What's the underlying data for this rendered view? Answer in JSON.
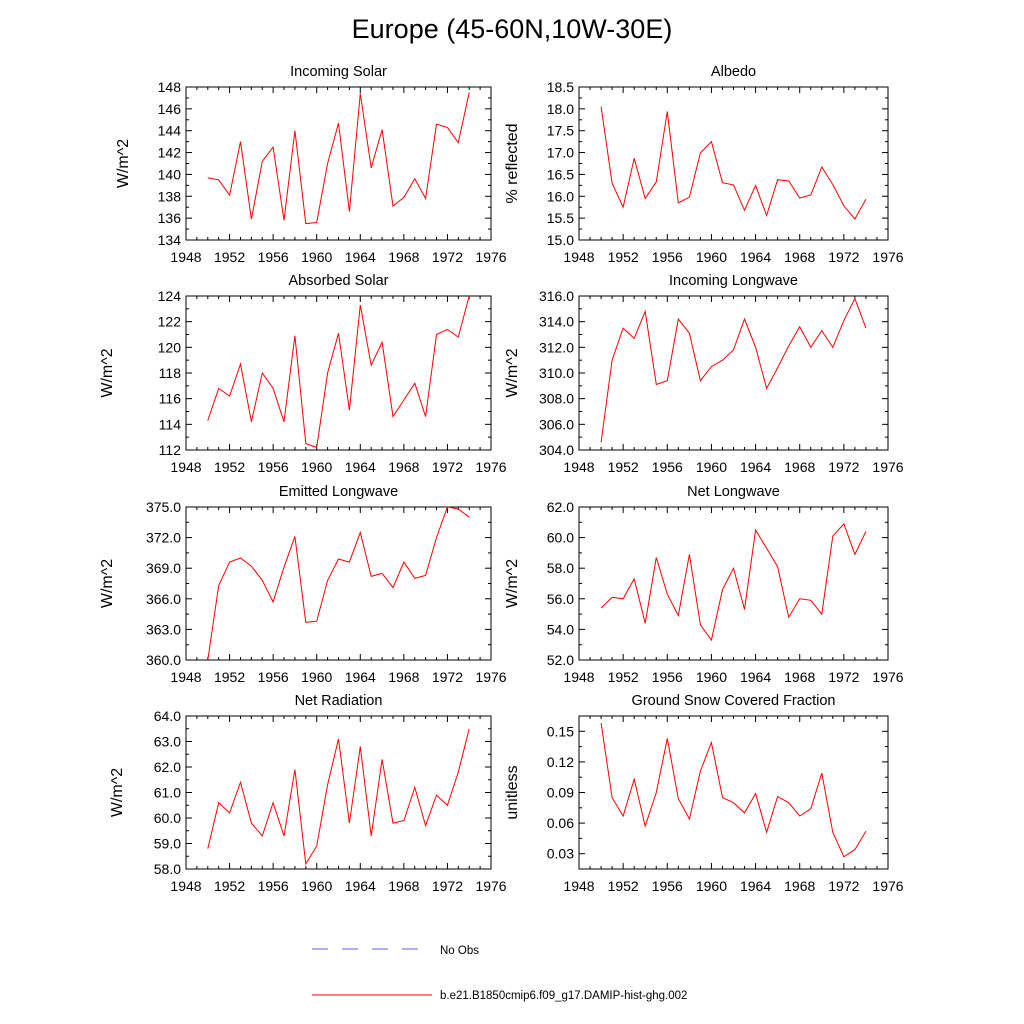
{
  "page": {
    "title": "Europe (45-60N,10W-30E)"
  },
  "legend": {
    "entries": [
      {
        "label": "No Obs",
        "color": "#5566cc",
        "style": "dashed"
      },
      {
        "label": "b.e21.B1850cmip6.f09_g17.DAMIP-hist-ghg.002",
        "color": "#ff0000",
        "style": "solid"
      }
    ]
  },
  "chart_data": [
    {
      "type": "line",
      "title": "Incoming Solar",
      "ylabel": "W/m^2",
      "xlim": [
        1948,
        1976
      ],
      "ylim": [
        134,
        148
      ],
      "xticks": [
        1948,
        1952,
        1956,
        1960,
        1964,
        1968,
        1972,
        1976
      ],
      "yticks": [
        134,
        136,
        138,
        140,
        142,
        144,
        146,
        148
      ],
      "ytick_labels": [
        "134",
        "136",
        "138",
        "140",
        "142",
        "144",
        "146",
        "148"
      ],
      "x": [
        1950,
        1951,
        1952,
        1953,
        1954,
        1955,
        1956,
        1957,
        1958,
        1959,
        1960,
        1961,
        1962,
        1963,
        1964,
        1965,
        1966,
        1967,
        1968,
        1969,
        1970,
        1971,
        1972,
        1973,
        1974
      ],
      "values": [
        139.7,
        139.5,
        138.1,
        143.0,
        135.9,
        141.2,
        142.5,
        135.8,
        144.0,
        135.5,
        135.6,
        141.0,
        144.7,
        136.6,
        147.4,
        140.6,
        144.1,
        137.1,
        137.9,
        139.6,
        137.8,
        144.6,
        144.3,
        142.9,
        147.5
      ],
      "color": "#ff0000"
    },
    {
      "type": "line",
      "title": "Albedo",
      "ylabel": "% reflected",
      "xlim": [
        1948,
        1976
      ],
      "ylim": [
        15.0,
        18.5
      ],
      "xticks": [
        1948,
        1952,
        1956,
        1960,
        1964,
        1968,
        1972,
        1976
      ],
      "yticks": [
        15.0,
        15.5,
        16.0,
        16.5,
        17.0,
        17.5,
        18.0,
        18.5
      ],
      "ytick_labels": [
        "15.0",
        "15.5",
        "16.0",
        "16.5",
        "17.0",
        "17.5",
        "18.0",
        "18.5"
      ],
      "x": [
        1950,
        1951,
        1952,
        1953,
        1954,
        1955,
        1956,
        1957,
        1958,
        1959,
        1960,
        1961,
        1962,
        1963,
        1964,
        1965,
        1966,
        1967,
        1968,
        1969,
        1970,
        1971,
        1972,
        1973,
        1974
      ],
      "values": [
        18.05,
        16.3,
        15.75,
        16.87,
        15.95,
        16.33,
        17.94,
        15.85,
        15.98,
        16.99,
        17.25,
        16.31,
        16.26,
        15.68,
        16.25,
        15.56,
        16.38,
        16.35,
        15.96,
        16.03,
        16.67,
        16.27,
        15.78,
        15.48,
        15.93
      ],
      "color": "#ff0000"
    },
    {
      "type": "line",
      "title": "Absorbed Solar",
      "ylabel": "W/m^2",
      "xlim": [
        1948,
        1976
      ],
      "ylim": [
        112,
        124
      ],
      "xticks": [
        1948,
        1952,
        1956,
        1960,
        1964,
        1968,
        1972,
        1976
      ],
      "yticks": [
        112,
        114,
        116,
        118,
        120,
        122,
        124
      ],
      "ytick_labels": [
        "112",
        "114",
        "116",
        "118",
        "120",
        "122",
        "124"
      ],
      "x": [
        1950,
        1951,
        1952,
        1953,
        1954,
        1955,
        1956,
        1957,
        1958,
        1959,
        1960,
        1961,
        1962,
        1963,
        1964,
        1965,
        1966,
        1967,
        1968,
        1969,
        1970,
        1971,
        1972,
        1973,
        1974
      ],
      "values": [
        114.3,
        116.8,
        116.2,
        118.7,
        114.2,
        118.0,
        116.8,
        114.2,
        120.9,
        112.5,
        112.2,
        118.0,
        121.1,
        115.1,
        123.3,
        118.6,
        120.4,
        114.6,
        115.9,
        117.2,
        114.6,
        121.0,
        121.4,
        120.8,
        124.0
      ],
      "color": "#ff0000"
    },
    {
      "type": "line",
      "title": "Incoming Longwave",
      "ylabel": "W/m^2",
      "xlim": [
        1948,
        1976
      ],
      "ylim": [
        304.0,
        316.0
      ],
      "xticks": [
        1948,
        1952,
        1956,
        1960,
        1964,
        1968,
        1972,
        1976
      ],
      "yticks": [
        304.0,
        306.0,
        308.0,
        310.0,
        312.0,
        314.0,
        316.0
      ],
      "ytick_labels": [
        "304.0",
        "306.0",
        "308.0",
        "310.0",
        "312.0",
        "314.0",
        "316.0"
      ],
      "x": [
        1950,
        1951,
        1952,
        1953,
        1954,
        1955,
        1956,
        1957,
        1958,
        1959,
        1960,
        1961,
        1962,
        1963,
        1964,
        1965,
        1966,
        1967,
        1968,
        1969,
        1970,
        1971,
        1972,
        1973,
        1974
      ],
      "values": [
        304.6,
        311.0,
        313.5,
        312.7,
        314.8,
        309.1,
        309.4,
        314.2,
        313.1,
        309.4,
        310.5,
        311.0,
        311.8,
        314.2,
        312.0,
        308.8,
        310.4,
        312.1,
        313.6,
        312.0,
        313.3,
        312.0,
        314.1,
        315.8,
        313.5
      ],
      "color": "#ff0000"
    },
    {
      "type": "line",
      "title": "Emitted Longwave",
      "ylabel": "W/m^2",
      "xlim": [
        1948,
        1976
      ],
      "ylim": [
        360.0,
        375.0
      ],
      "xticks": [
        1948,
        1952,
        1956,
        1960,
        1964,
        1968,
        1972,
        1976
      ],
      "yticks": [
        360.0,
        363.0,
        366.0,
        369.0,
        372.0,
        375.0
      ],
      "ytick_labels": [
        "360.0",
        "363.0",
        "366.0",
        "369.0",
        "372.0",
        "375.0"
      ],
      "x": [
        1950,
        1951,
        1952,
        1953,
        1954,
        1955,
        1956,
        1957,
        1958,
        1959,
        1960,
        1961,
        1962,
        1963,
        1964,
        1965,
        1966,
        1967,
        1968,
        1969,
        1970,
        1971,
        1972,
        1973,
        1974
      ],
      "values": [
        360.0,
        367.3,
        369.6,
        370.0,
        369.2,
        367.8,
        365.7,
        369.1,
        372.1,
        363.7,
        363.8,
        367.8,
        369.9,
        369.6,
        372.5,
        368.2,
        368.5,
        367.1,
        369.6,
        368.0,
        368.3,
        372.0,
        375.0,
        374.8,
        374.0
      ],
      "color": "#ff0000"
    },
    {
      "type": "line",
      "title": "Net Longwave",
      "ylabel": "W/m^2",
      "xlim": [
        1948,
        1976
      ],
      "ylim": [
        52.0,
        62.0
      ],
      "xticks": [
        1948,
        1952,
        1956,
        1960,
        1964,
        1968,
        1972,
        1976
      ],
      "yticks": [
        52.0,
        54.0,
        56.0,
        58.0,
        60.0,
        62.0
      ],
      "ytick_labels": [
        "52.0",
        "54.0",
        "56.0",
        "58.0",
        "60.0",
        "62.0"
      ],
      "x": [
        1950,
        1951,
        1952,
        1953,
        1954,
        1955,
        1956,
        1957,
        1958,
        1959,
        1960,
        1961,
        1962,
        1963,
        1964,
        1965,
        1966,
        1967,
        1968,
        1969,
        1970,
        1971,
        1972,
        1973,
        1974
      ],
      "values": [
        55.4,
        56.1,
        56.0,
        57.3,
        54.4,
        58.7,
        56.3,
        54.9,
        58.9,
        54.3,
        53.3,
        56.6,
        58.0,
        55.3,
        60.5,
        59.3,
        58.1,
        54.8,
        56.0,
        55.9,
        55.0,
        60.1,
        60.9,
        58.9,
        60.4
      ],
      "color": "#ff0000"
    },
    {
      "type": "line",
      "title": "Net Radiation",
      "ylabel": "W/m^2",
      "xlim": [
        1948,
        1976
      ],
      "ylim": [
        58.0,
        64.0
      ],
      "xticks": [
        1948,
        1952,
        1956,
        1960,
        1964,
        1968,
        1972,
        1976
      ],
      "yticks": [
        58.0,
        59.0,
        60.0,
        61.0,
        62.0,
        63.0,
        64.0
      ],
      "ytick_labels": [
        "58.0",
        "59.0",
        "60.0",
        "61.0",
        "62.0",
        "63.0",
        "64.0"
      ],
      "x": [
        1950,
        1951,
        1952,
        1953,
        1954,
        1955,
        1956,
        1957,
        1958,
        1959,
        1960,
        1961,
        1962,
        1963,
        1964,
        1965,
        1966,
        1967,
        1968,
        1969,
        1970,
        1971,
        1972,
        1973,
        1974
      ],
      "values": [
        58.8,
        60.6,
        60.2,
        61.4,
        59.8,
        59.3,
        60.6,
        59.3,
        61.9,
        58.2,
        58.9,
        61.3,
        63.1,
        59.8,
        62.8,
        59.3,
        62.3,
        59.8,
        59.9,
        61.2,
        59.7,
        60.9,
        60.5,
        61.8,
        63.5
      ],
      "color": "#ff0000"
    },
    {
      "type": "line",
      "title": "Ground Snow Covered Fraction",
      "ylabel": "unitless",
      "xlim": [
        1948,
        1976
      ],
      "ylim": [
        0.015,
        0.165
      ],
      "xticks": [
        1948,
        1952,
        1956,
        1960,
        1964,
        1968,
        1972,
        1976
      ],
      "yticks": [
        0.03,
        0.06,
        0.09,
        0.12,
        0.15
      ],
      "ytick_labels": [
        "0.03",
        "0.06",
        "0.09",
        "0.12",
        "0.15"
      ],
      "x": [
        1950,
        1951,
        1952,
        1953,
        1954,
        1955,
        1956,
        1957,
        1958,
        1959,
        1960,
        1961,
        1962,
        1963,
        1964,
        1965,
        1966,
        1967,
        1968,
        1969,
        1970,
        1971,
        1972,
        1973,
        1974
      ],
      "values": [
        0.158,
        0.085,
        0.067,
        0.103,
        0.057,
        0.09,
        0.143,
        0.084,
        0.064,
        0.111,
        0.139,
        0.085,
        0.08,
        0.07,
        0.089,
        0.051,
        0.086,
        0.08,
        0.067,
        0.074,
        0.109,
        0.051,
        0.027,
        0.034,
        0.052
      ],
      "color": "#ff0000"
    }
  ]
}
